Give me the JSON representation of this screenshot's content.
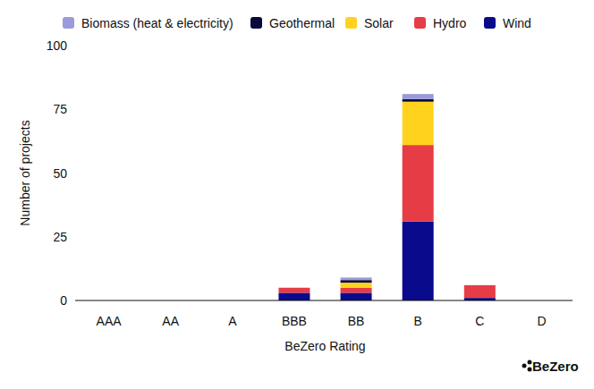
{
  "chart_data": {
    "type": "bar",
    "stacked": true,
    "x_label": "BeZero Rating",
    "y_label": "Number of projects",
    "annotations": [
      "BeZero"
    ],
    "categories": [
      "AAA",
      "AA",
      "A",
      "BBB",
      "BB",
      "B",
      "C",
      "D"
    ],
    "series": [
      {
        "name": "Wind",
        "color": "#0a0a8c",
        "values": [
          0,
          0,
          0,
          3,
          3,
          31,
          1,
          0
        ]
      },
      {
        "name": "Hydro",
        "color": "#e63c46",
        "values": [
          0,
          0,
          0,
          2,
          2,
          30,
          5,
          0
        ]
      },
      {
        "name": "Solar",
        "color": "#ffd21e",
        "values": [
          0,
          0,
          0,
          0,
          2,
          17,
          0,
          0
        ]
      },
      {
        "name": "Geothermal",
        "color": "#0a0a3c",
        "values": [
          0,
          0,
          0,
          0,
          1,
          1,
          0,
          0
        ]
      },
      {
        "name": "Biomass (heat & electricity)",
        "color": "#9b9bdb",
        "values": [
          0,
          0,
          0,
          0,
          1,
          2,
          0,
          0
        ]
      }
    ],
    "ylim": [
      0,
      100
    ],
    "yticks": [
      0,
      25,
      50,
      75,
      100
    ],
    "grid": false,
    "legend": "top"
  }
}
